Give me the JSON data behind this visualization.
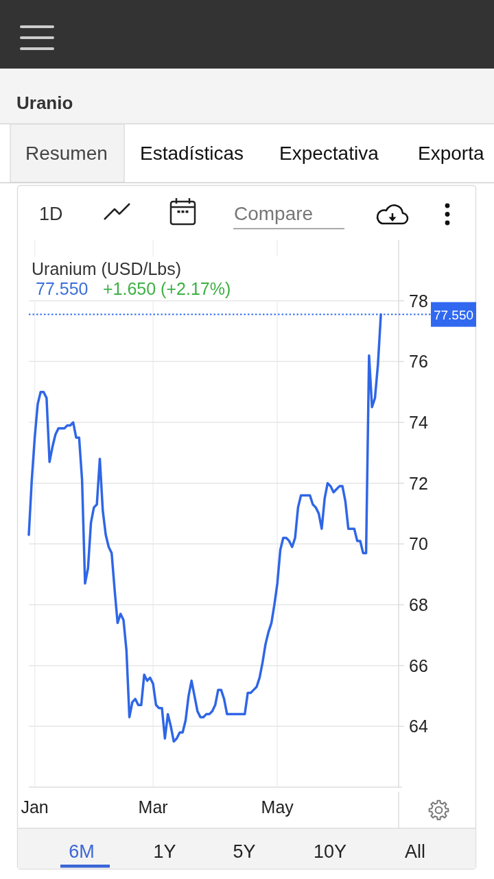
{
  "chart_data": {
    "type": "line",
    "title": "Uranio",
    "subtitle": "Uranium (USD/Lbs)",
    "annotations": [
      "77.550",
      "+1.650 (+2.17%)",
      "Resumen",
      "Estadísticas",
      "Expectativa",
      "Exporta",
      "1D",
      "Compare",
      "6M",
      "1Y",
      "5Y",
      "10Y",
      "All"
    ],
    "categories": [
      null,
      null,
      "Jan",
      null,
      null,
      null,
      null,
      null,
      null,
      null,
      null,
      null,
      null,
      null,
      null,
      null,
      null,
      null,
      null,
      null,
      null,
      null,
      null,
      null,
      null,
      null,
      null,
      null,
      null,
      null,
      null,
      null,
      null,
      null,
      null,
      null,
      null,
      null,
      null,
      null,
      null,
      null,
      "Mar",
      null,
      null,
      null,
      null,
      null,
      null,
      null,
      null,
      null,
      null,
      null,
      null,
      null,
      null,
      null,
      null,
      null,
      null,
      null,
      null,
      null,
      null,
      null,
      null,
      null,
      null,
      null,
      null,
      null,
      null,
      null,
      null,
      null,
      null,
      null,
      null,
      null,
      null,
      null,
      null,
      null,
      "May",
      null,
      null,
      null,
      null,
      null,
      null,
      null,
      null,
      null,
      null,
      null,
      null,
      null,
      null,
      null,
      null,
      null,
      null,
      null,
      null,
      null,
      null,
      null,
      null,
      null,
      null,
      null,
      null,
      null,
      null,
      null,
      null,
      null,
      null,
      null,
      null,
      null,
      null,
      null,
      null,
      null
    ],
    "series": [
      {
        "color": "#2f66e6",
        "values": [
          70.3,
          72.1,
          73.5,
          74.6,
          75.0,
          75.0,
          74.8,
          72.7,
          73.2,
          73.6,
          73.8,
          73.8,
          73.8,
          73.9,
          73.9,
          74.0,
          73.5,
          73.5,
          72.1,
          68.7,
          69.2,
          70.7,
          71.2,
          71.3,
          72.8,
          71.1,
          70.3,
          69.9,
          69.7,
          68.5,
          67.4,
          67.7,
          67.5,
          66.5,
          64.3,
          64.8,
          64.9,
          64.7,
          64.7,
          65.7,
          65.5,
          65.6,
          65.4,
          64.7,
          64.6,
          64.6,
          63.6,
          64.4,
          64.0,
          63.5,
          63.6,
          63.8,
          63.8,
          64.2,
          65.0,
          65.5,
          65.0,
          64.5,
          64.3,
          64.3,
          64.4,
          64.4,
          64.5,
          64.7,
          65.2,
          65.2,
          64.9,
          64.4,
          64.4,
          64.4,
          64.4,
          64.4,
          64.4,
          64.4,
          65.1,
          65.1,
          65.2,
          65.3,
          65.6,
          66.1,
          66.7,
          67.1,
          67.4,
          68.0,
          68.7,
          69.8,
          70.2,
          70.2,
          70.1,
          69.9,
          70.2,
          71.2,
          71.6,
          71.6,
          71.6,
          71.6,
          71.3,
          71.2,
          71.0,
          70.5,
          71.5,
          72.0,
          71.9,
          71.7,
          71.8,
          71.9,
          71.9,
          71.4,
          70.5,
          70.5,
          70.5,
          70.1,
          70.1,
          69.7,
          69.7,
          76.2,
          74.5,
          74.8,
          75.9,
          77.55,
          null,
          null,
          null,
          null,
          null,
          null
        ]
      }
    ],
    "ylim": [
      62,
      80
    ],
    "yticks": [
      64,
      66,
      68,
      70,
      72,
      74,
      76,
      78
    ],
    "grid": true,
    "ref_lines": [
      {
        "axis": "y",
        "value": 77.55,
        "label": "77.550",
        "color": "#3068f0",
        "line_style": "dotted"
      }
    ]
  }
}
